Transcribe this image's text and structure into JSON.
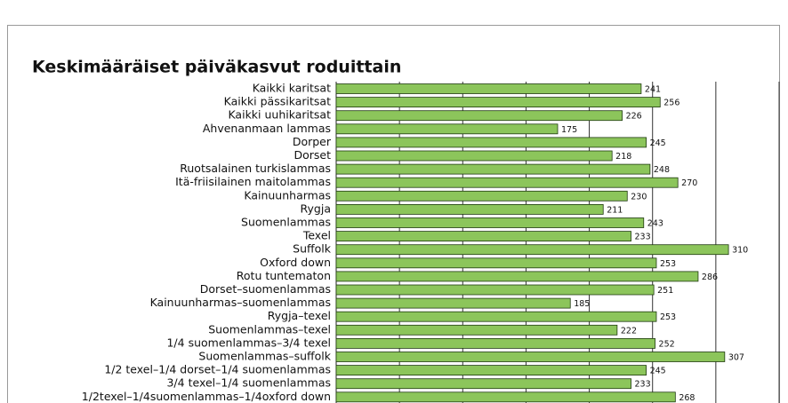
{
  "chart_data": {
    "type": "bar",
    "orientation": "horizontal",
    "title": "Keskimääräiset päiväkasvut roduittain",
    "categories": [
      "Kaikki karitsat",
      "Kaikki pässikaritsat",
      "Kaikki uuhikaritsat",
      "Ahvenanmaan lammas",
      "Dorper",
      "Dorset",
      "Ruotsalainen turkislammas",
      "Itä-friisilainen maitolammas",
      "Kainuunharmas",
      "Rygja",
      "Suomenlammas",
      "Texel",
      "Suffolk",
      "Oxford down",
      "Rotu tuntematon",
      "Dorset–suomenlammas",
      "Kainuunharmas–suomenlammas",
      "Rygja–texel",
      "Suomenlammas–texel",
      "1/4 suomenlammas–3/4 texel",
      "Suomenlammas–suffolk",
      "1/2 texel–1/4 dorset–1/4 suomenlammas",
      "3/4 texel–1/4 suomenlammas",
      "1/2texel–1/4suomenlammas–1/4oxford down"
    ],
    "values": [
      241,
      256,
      226,
      175,
      245,
      218,
      248,
      270,
      230,
      211,
      243,
      233,
      310,
      253,
      286,
      251,
      185,
      253,
      222,
      252,
      307,
      245,
      233,
      268
    ],
    "color": "#8cc55b",
    "xlim": [
      0,
      350
    ],
    "xticks": [
      0,
      50,
      100,
      150,
      200,
      250,
      300,
      350
    ],
    "grid": true
  }
}
